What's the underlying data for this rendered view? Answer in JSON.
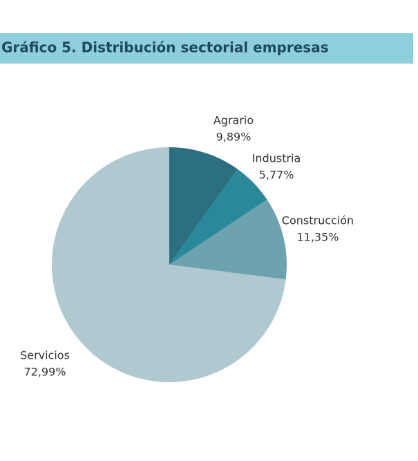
{
  "chart_data": {
    "type": "pie",
    "title": "Gráfico 5. Distribución sectorial empresas",
    "categories": [
      "Agrario",
      "Industria",
      "Construcción",
      "Servicios"
    ],
    "values": [
      9.89,
      5.77,
      11.35,
      72.99
    ],
    "value_labels": [
      "9,89%",
      "5,77%",
      "11,35%",
      "72,99%"
    ],
    "colors": [
      "#2c6f80",
      "#29889a",
      "#6da2af",
      "#b0c9d1"
    ]
  }
}
